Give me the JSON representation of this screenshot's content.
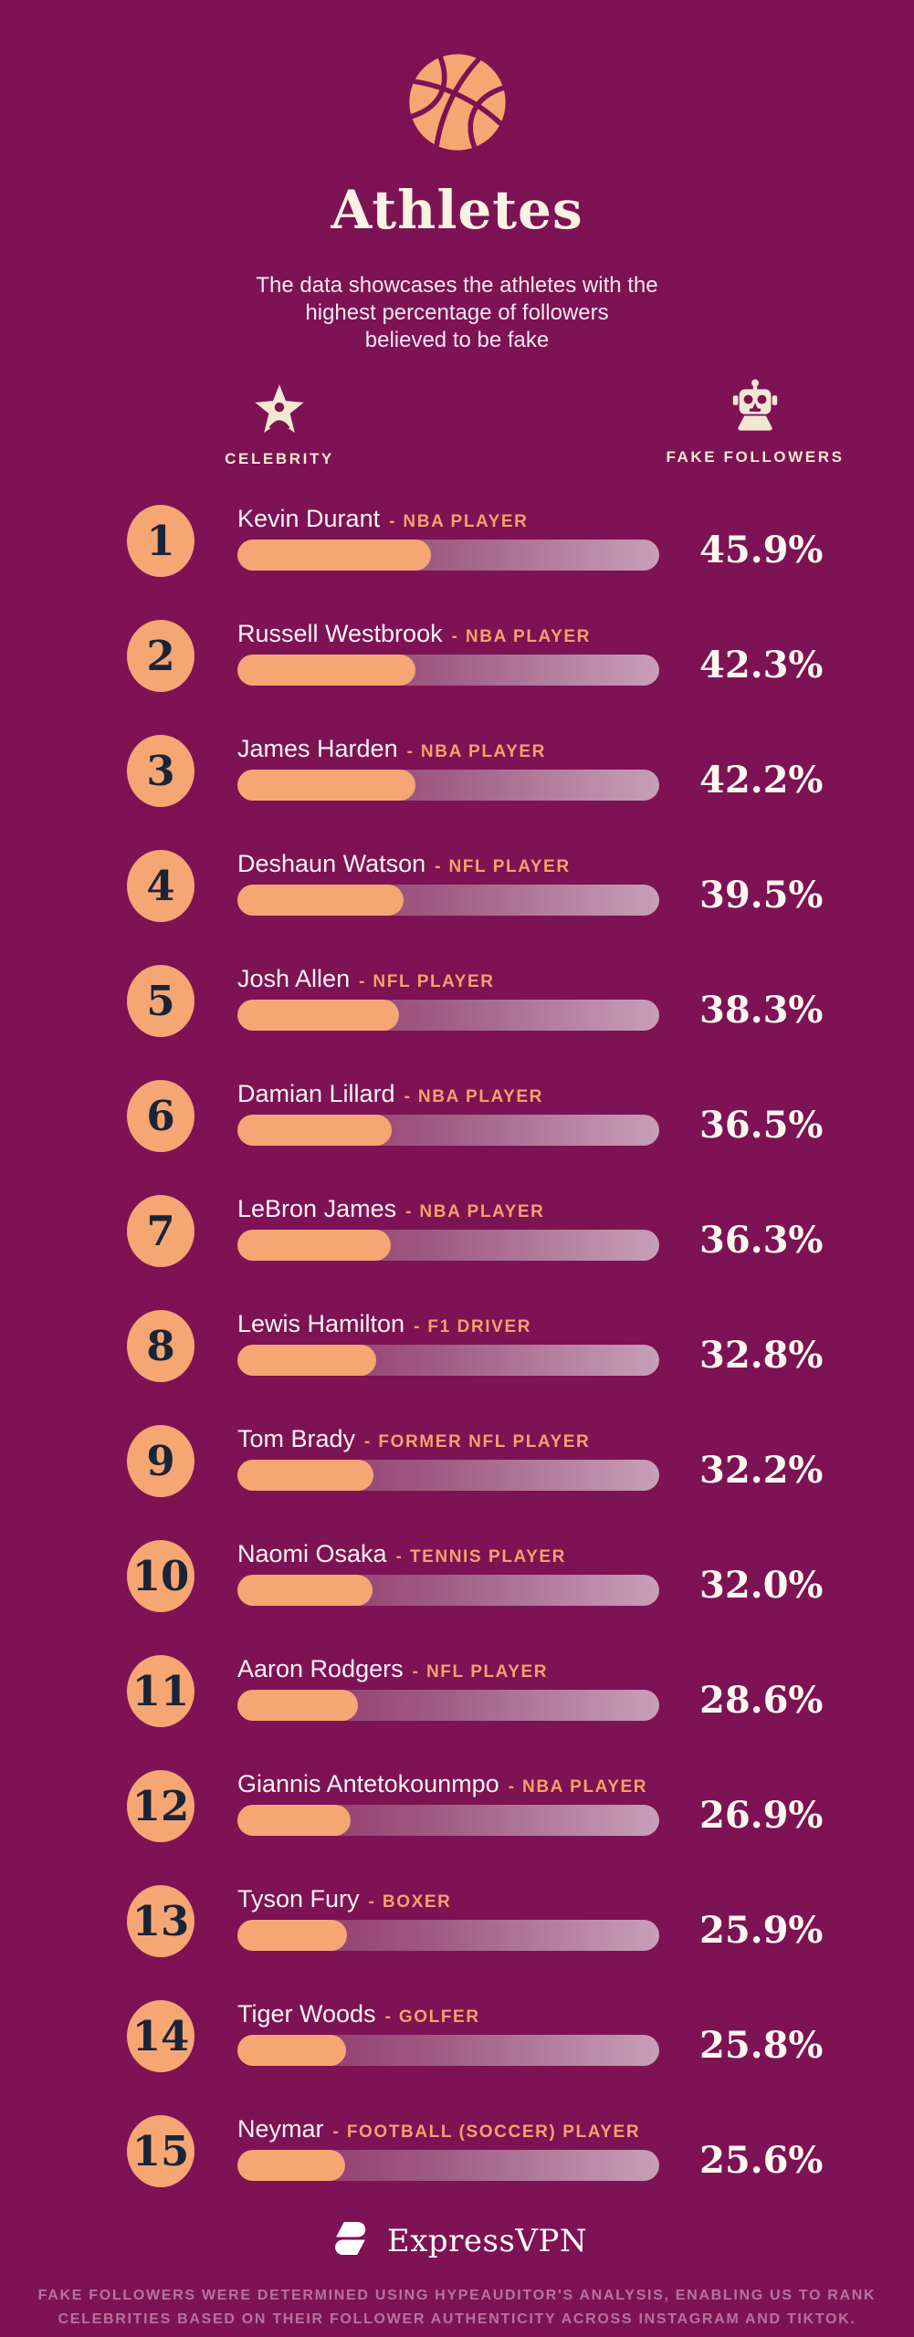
{
  "page": {
    "background_color": "#7D1254",
    "accent_orange": "#F6A673",
    "cream": "#F2E8D1",
    "title": "Athletes",
    "subtitle_lines": [
      "The data showcases the athletes with the",
      "highest percentage of followers",
      "believed to be fake"
    ],
    "columns": {
      "left_label": "CELEBRITY",
      "right_label": "FAKE FOLLOWERS"
    },
    "separator": "-",
    "footer": {
      "brand": "ExpressVPN",
      "disclaimer_lines": [
        "FAKE FOLLOWERS WERE DETERMINED USING HYPEAUDITOR'S ANALYSIS, ENABLING US TO RANK",
        "CELEBRITIES BASED ON THEIR FOLLOWER AUTHENTICITY ACROSS INSTAGRAM AND TIKTOK."
      ]
    }
  },
  "rows": [
    {
      "rank": "1",
      "name": "Kevin Durant",
      "role": "NBA PLAYER",
      "value": 45.9,
      "value_label": "45.9%"
    },
    {
      "rank": "2",
      "name": "Russell Westbrook",
      "role": "NBA PLAYER",
      "value": 42.3,
      "value_label": "42.3%"
    },
    {
      "rank": "3",
      "name": "James Harden",
      "role": "NBA PLAYER",
      "value": 42.2,
      "value_label": "42.2%"
    },
    {
      "rank": "4",
      "name": "Deshaun Watson",
      "role": "NFL PLAYER",
      "value": 39.5,
      "value_label": "39.5%"
    },
    {
      "rank": "5",
      "name": "Josh Allen",
      "role": "NFL PLAYER",
      "value": 38.3,
      "value_label": "38.3%"
    },
    {
      "rank": "6",
      "name": "Damian Lillard",
      "role": "NBA PLAYER",
      "value": 36.5,
      "value_label": "36.5%"
    },
    {
      "rank": "7",
      "name": "LeBron James",
      "role": "NBA PLAYER",
      "value": 36.3,
      "value_label": "36.3%"
    },
    {
      "rank": "8",
      "name": "Lewis Hamilton",
      "role": "F1 DRIVER",
      "value": 32.8,
      "value_label": "32.8%"
    },
    {
      "rank": "9",
      "name": "Tom Brady",
      "role": "FORMER NFL PLAYER",
      "value": 32.2,
      "value_label": "32.2%"
    },
    {
      "rank": "10",
      "name": "Naomi Osaka",
      "role": "TENNIS PLAYER",
      "value": 32.0,
      "value_label": "32.0%"
    },
    {
      "rank": "11",
      "name": "Aaron Rodgers",
      "role": "NFL PLAYER",
      "value": 28.6,
      "value_label": "28.6%"
    },
    {
      "rank": "12",
      "name": "Giannis Antetokounmpo",
      "role": "NBA PLAYER",
      "value": 26.9,
      "value_label": "26.9%"
    },
    {
      "rank": "13",
      "name": "Tyson Fury",
      "role": "BOXER",
      "value": 25.9,
      "value_label": "25.9%"
    },
    {
      "rank": "14",
      "name": "Tiger Woods",
      "role": "GOLFER",
      "value": 25.8,
      "value_label": "25.8%"
    },
    {
      "rank": "15",
      "name": "Neymar",
      "role": "FOOTBALL (SOCCER) PLAYER",
      "value": 25.6,
      "value_label": "25.6%"
    }
  ],
  "chart_data": {
    "type": "bar",
    "orientation": "horizontal",
    "title": "Athletes",
    "subtitle": "The data showcases the athletes with the highest percentage of followers believed to be fake",
    "categories": [
      "Kevin Durant",
      "Russell Westbrook",
      "James Harden",
      "Deshaun Watson",
      "Josh Allen",
      "Damian Lillard",
      "LeBron James",
      "Lewis Hamilton",
      "Tom Brady",
      "Naomi Osaka",
      "Aaron Rodgers",
      "Giannis Antetokounmpo",
      "Tyson Fury",
      "Tiger Woods",
      "Neymar"
    ],
    "category_roles": [
      "NBA PLAYER",
      "NBA PLAYER",
      "NBA PLAYER",
      "NFL PLAYER",
      "NFL PLAYER",
      "NBA PLAYER",
      "NBA PLAYER",
      "F1 DRIVER",
      "FORMER NFL PLAYER",
      "TENNIS PLAYER",
      "NFL PLAYER",
      "NBA PLAYER",
      "BOXER",
      "GOLFER",
      "FOOTBALL (SOCCER) PLAYER"
    ],
    "values": [
      45.9,
      42.3,
      42.2,
      39.5,
      38.3,
      36.5,
      36.3,
      32.8,
      32.2,
      32.0,
      28.6,
      26.9,
      25.9,
      25.8,
      25.6
    ],
    "unit": "%",
    "xlim": [
      0,
      100
    ],
    "series_label": "Fake followers",
    "legend_position": "none",
    "grid": false
  }
}
